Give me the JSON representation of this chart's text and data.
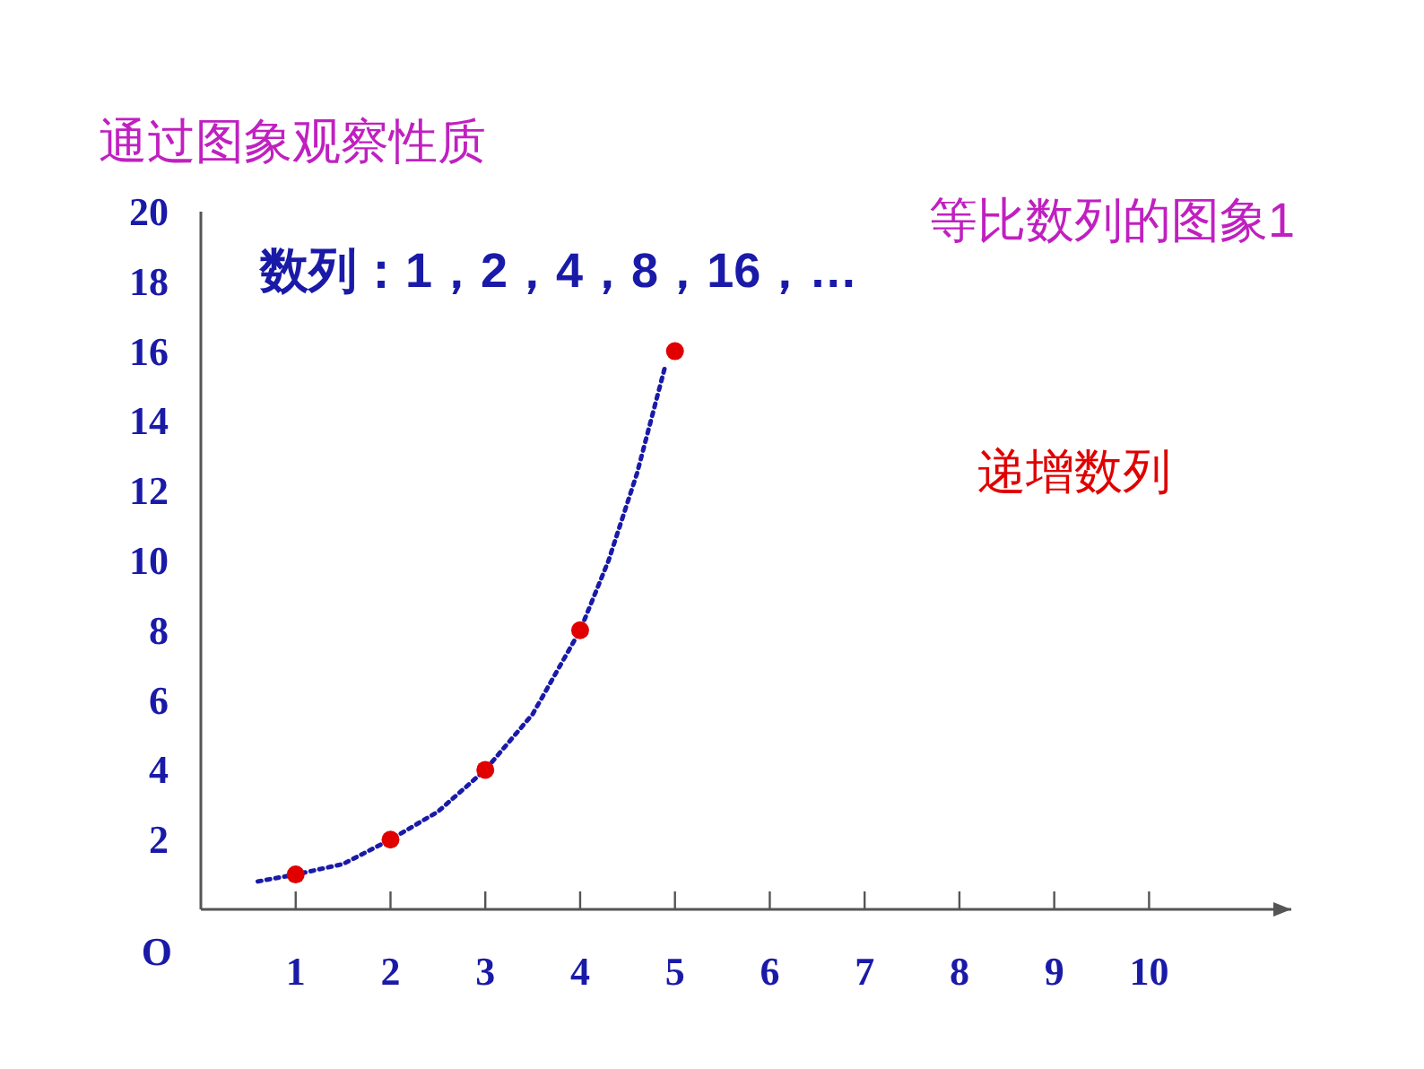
{
  "chart_data": {
    "type": "scatter",
    "title": "等比数列的图象1",
    "subtitle": "数列：1，2，4，8，16，…",
    "annotations": [
      "通过图象观察性质",
      "递增数列",
      "O"
    ],
    "x": [
      1,
      2,
      3,
      4,
      5
    ],
    "series": [
      {
        "type": "line",
        "color": "#1a1aa8",
        "marker": "none",
        "line_style": "dotted",
        "x": [
          0.6,
          1,
          1.5,
          2,
          2.5,
          3,
          3.5,
          4,
          4.3,
          4.6,
          4.9
        ],
        "values": [
          0.8,
          1,
          1.3,
          2,
          2.8,
          4,
          5.6,
          8,
          10,
          12.5,
          15.6
        ]
      },
      {
        "color": "#e00000",
        "marker": "circle",
        "values": [
          1,
          2,
          4,
          8,
          16
        ]
      }
    ],
    "xlim": [
      0,
      11.5
    ],
    "ylim": [
      0,
      20
    ],
    "xticks": [
      1,
      2,
      3,
      4,
      5,
      6,
      7,
      8,
      9,
      10
    ],
    "yticks": [
      2,
      4,
      6,
      8,
      10,
      12,
      14,
      16,
      18,
      20
    ],
    "grid": false
  }
}
